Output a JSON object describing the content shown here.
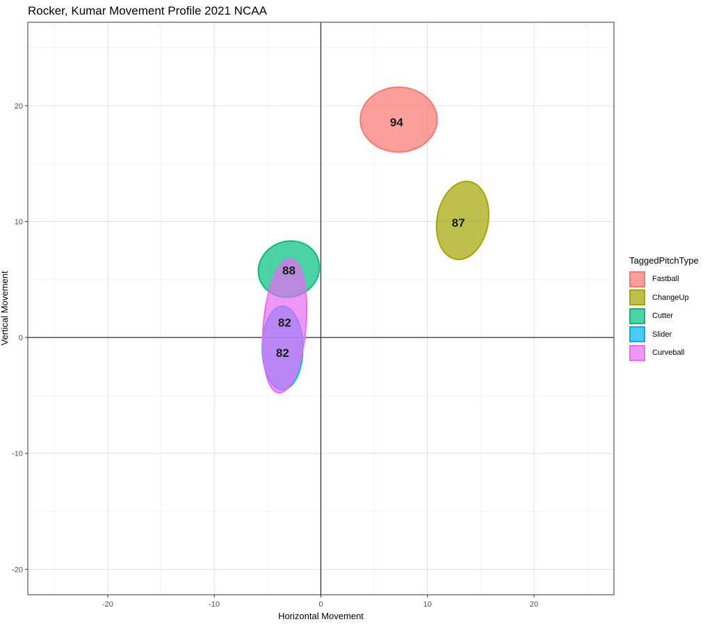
{
  "chart_data": {
    "type": "scatter",
    "title": "Rocker, Kumar Movement Profile 2021 NCAA",
    "xlabel": "Horizontal Movement",
    "ylabel": "Vertical Movement",
    "xlim": [
      -27.5,
      27.5
    ],
    "ylim": [
      -22.2,
      27.2
    ],
    "xticks": [
      -20,
      -10,
      0,
      10,
      20
    ],
    "yticks": [
      -20,
      -10,
      0,
      10,
      20
    ],
    "grid": true,
    "legend_title": "TaggedPitchType",
    "legend_position": "right",
    "series": [
      {
        "name": "Fastball",
        "color": "#F8766D",
        "center": [
          7.3,
          18.8
        ],
        "rx": 3.6,
        "ry": 2.8,
        "rotate": 0,
        "label": "94"
      },
      {
        "name": "ChangeUp",
        "color": "#A3A500",
        "center": [
          13.3,
          10.1
        ],
        "rx": 2.4,
        "ry": 3.4,
        "rotate": 10,
        "label": "87"
      },
      {
        "name": "Cutter",
        "color": "#00BF7D",
        "center": [
          -3.0,
          5.9
        ],
        "rx": 2.9,
        "ry": 2.4,
        "rotate": -20,
        "label": "88"
      },
      {
        "name": "Slider",
        "color": "#00B0F6",
        "center": [
          -3.6,
          -0.9
        ],
        "rx": 1.9,
        "ry": 3.6,
        "rotate": 0,
        "label": "82"
      },
      {
        "name": "Curveball",
        "color": "#E76BF3",
        "center": [
          -3.4,
          1.0
        ],
        "rx": 2.0,
        "ry": 5.8,
        "rotate": 5,
        "label": "82"
      }
    ],
    "label_positions": [
      {
        "series": "Fastball",
        "x": 7.1,
        "y": 18.6
      },
      {
        "series": "ChangeUp",
        "x": 12.9,
        "y": 9.9
      },
      {
        "series": "Cutter",
        "x": -3.0,
        "y": 5.8
      },
      {
        "series": "Curveball",
        "x": -3.4,
        "y": 1.3
      },
      {
        "series": "Slider",
        "x": -3.6,
        "y": -1.3
      }
    ]
  }
}
